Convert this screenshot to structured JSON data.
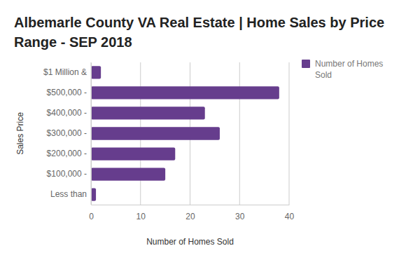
{
  "chart_data": {
    "type": "bar",
    "orientation": "horizontal",
    "title": "Albemarle County VA Real Estate | Home Sales by Price Range - SEP 2018",
    "xlabel": "Number of Homes Sold",
    "ylabel": "Sales Price",
    "categories": [
      "$1 Million &",
      "$500,000 -",
      "$400,000 -",
      "$300,000 -",
      "$200,000 -",
      "$100,000 -",
      "Less than"
    ],
    "series": [
      {
        "name": "Number of Homes Sold",
        "color": "#663d8d",
        "values": [
          2,
          38,
          23,
          26,
          17,
          15,
          1
        ]
      }
    ],
    "xlim": [
      0,
      40
    ],
    "xticks": [
      0,
      10,
      20,
      30,
      40
    ],
    "grid": true,
    "legend": "right"
  }
}
